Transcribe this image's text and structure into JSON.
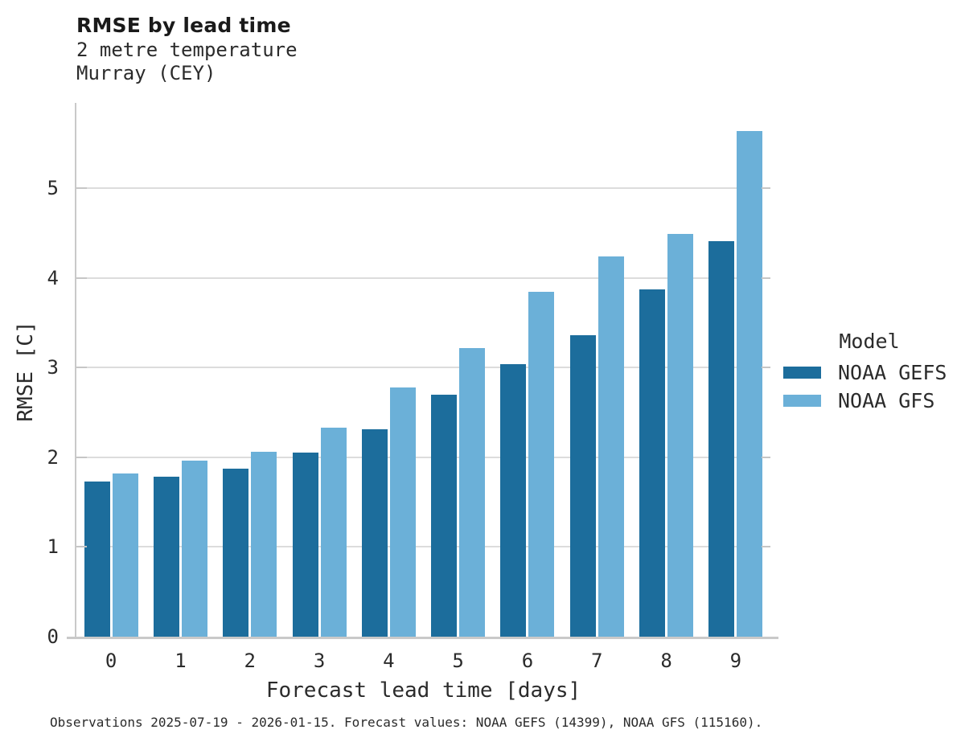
{
  "header": {
    "title": "RMSE by lead time",
    "subtitle_line1": "2 metre temperature",
    "subtitle_line2": "Murray (CEY)"
  },
  "legend": {
    "title": "Model",
    "entries": [
      {
        "label": "NOAA GEFS",
        "color": "#1C6D9C"
      },
      {
        "label": "NOAA GFS",
        "color": "#6BB0D8"
      }
    ]
  },
  "caption": "Observations 2025-07-19 - 2026-01-15. Forecast values: NOAA GEFS (14399), NOAA GFS (115160).",
  "chart_data": {
    "type": "bar",
    "title": "RMSE by lead time",
    "subtitle": "2 metre temperature, Murray (CEY)",
    "xlabel": "Forecast lead time [days]",
    "ylabel": "RMSE [C]",
    "categories": [
      "0",
      "1",
      "2",
      "3",
      "4",
      "5",
      "6",
      "7",
      "8",
      "9"
    ],
    "series": [
      {
        "name": "NOAA GEFS",
        "color": "#1C6D9C",
        "values": [
          1.73,
          1.78,
          1.87,
          2.05,
          2.31,
          2.7,
          3.04,
          3.36,
          3.87,
          4.41
        ]
      },
      {
        "name": "NOAA GFS",
        "color": "#6BB0D8",
        "values": [
          1.82,
          1.96,
          2.06,
          2.33,
          2.78,
          3.22,
          3.84,
          4.24,
          4.49,
          5.64
        ]
      }
    ],
    "yticks": [
      0,
      1,
      2,
      3,
      4,
      5
    ],
    "ylim": [
      0,
      5.95
    ],
    "grid": true,
    "legend_position": "right",
    "colors": {
      "grid": "#dcdcdc",
      "spine": "#c9c9c9",
      "text": "#2b2b2b"
    }
  }
}
